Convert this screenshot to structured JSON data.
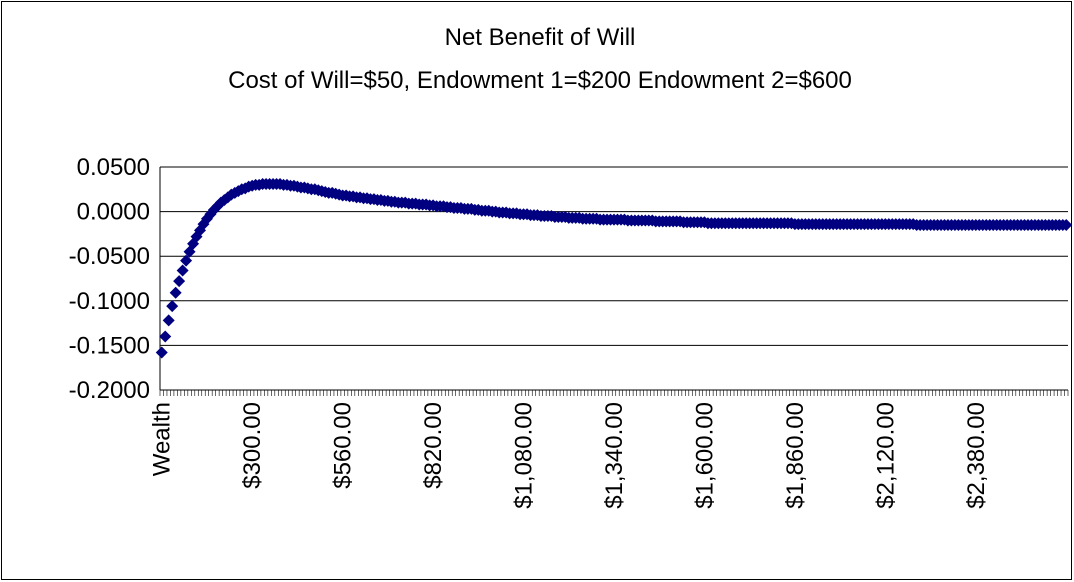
{
  "chart_data": {
    "type": "scatter-category",
    "title": "Net Benefit of Will",
    "subtitle": "Cost of Will=$50, Endowment 1=$200 Endowment 2=$600",
    "color": "#000080",
    "grid": true,
    "ylim": [
      -0.2,
      0.05
    ],
    "yticks": [
      {
        "value": 0.05,
        "label": "0.0500"
      },
      {
        "value": 0,
        "label": "0.0000"
      },
      {
        "value": -0.05,
        "label": "-0.0500"
      },
      {
        "value": -0.1,
        "label": "-0.1000"
      },
      {
        "value": -0.15,
        "label": "-0.1500"
      },
      {
        "value": -0.2,
        "label": "-0.2000"
      }
    ],
    "categories": [
      "Wealth",
      null,
      null,
      null,
      null,
      null,
      null,
      null,
      null,
      null,
      null,
      null,
      null,
      null,
      null,
      null,
      null,
      null,
      null,
      null,
      null,
      null,
      null,
      null,
      null,
      null,
      "$300.00",
      null,
      null,
      null,
      null,
      null,
      null,
      null,
      null,
      null,
      null,
      null,
      null,
      null,
      null,
      null,
      null,
      null,
      null,
      null,
      null,
      null,
      null,
      null,
      null,
      null,
      "$560.00",
      null,
      null,
      null,
      null,
      null,
      null,
      null,
      null,
      null,
      null,
      null,
      null,
      null,
      null,
      null,
      null,
      null,
      null,
      null,
      null,
      null,
      null,
      null,
      null,
      null,
      "$820.00",
      null,
      null,
      null,
      null,
      null,
      null,
      null,
      null,
      null,
      null,
      null,
      null,
      null,
      null,
      null,
      null,
      null,
      null,
      null,
      null,
      null,
      null,
      null,
      null,
      null,
      "$1,080.00",
      null,
      null,
      null,
      null,
      null,
      null,
      null,
      null,
      null,
      null,
      null,
      null,
      null,
      null,
      null,
      null,
      null,
      null,
      null,
      null,
      null,
      null,
      null,
      null,
      null,
      "$1,340.00",
      null,
      null,
      null,
      null,
      null,
      null,
      null,
      null,
      null,
      null,
      null,
      null,
      null,
      null,
      null,
      null,
      null,
      null,
      null,
      null,
      null,
      null,
      null,
      null,
      null,
      "$1,600.00",
      null,
      null,
      null,
      null,
      null,
      null,
      null,
      null,
      null,
      null,
      null,
      null,
      null,
      null,
      null,
      null,
      null,
      null,
      null,
      null,
      null,
      null,
      null,
      null,
      null,
      "$1,860.00",
      null,
      null,
      null,
      null,
      null,
      null,
      null,
      null,
      null,
      null,
      null,
      null,
      null,
      null,
      null,
      null,
      null,
      null,
      null,
      null,
      null,
      null,
      null,
      null,
      null,
      "$2,120.00",
      null,
      null,
      null,
      null,
      null,
      null,
      null,
      null,
      null,
      null,
      null,
      null,
      null,
      null,
      null,
      null,
      null,
      null,
      null,
      null,
      null,
      null,
      null,
      null,
      null,
      "$2,380.00",
      null,
      null,
      null,
      null,
      null,
      null,
      null,
      null,
      null,
      null,
      null,
      null,
      null,
      null,
      null,
      null,
      null,
      null,
      null,
      null,
      null,
      null,
      null,
      null,
      null,
      null
    ],
    "values": [
      -0.158,
      -0.14,
      -0.122,
      -0.106,
      -0.091,
      -0.078,
      -0.066,
      -0.055,
      -0.045,
      -0.036,
      -0.028,
      -0.021,
      -0.014,
      -0.008,
      -0.003,
      0.002,
      0.006,
      0.01,
      0.013,
      0.016,
      0.019,
      0.021,
      0.023,
      0.025,
      0.026,
      0.028,
      0.029,
      0.03,
      0.03,
      0.031,
      0.031,
      0.031,
      0.031,
      0.031,
      0.031,
      0.03,
      0.03,
      0.029,
      0.029,
      0.028,
      0.027,
      0.027,
      0.026,
      0.025,
      0.025,
      0.024,
      0.023,
      0.022,
      0.021,
      0.021,
      0.02,
      0.019,
      0.018,
      0.018,
      0.017,
      0.017,
      0.016,
      0.016,
      0.015,
      0.015,
      0.014,
      0.014,
      0.013,
      0.013,
      0.012,
      0.012,
      0.011,
      0.011,
      0.01,
      0.01,
      0.01,
      0.009,
      0.009,
      0.009,
      0.008,
      0.008,
      0.008,
      0.007,
      0.007,
      0.006,
      0.006,
      0.006,
      0.005,
      0.005,
      0.004,
      0.004,
      0.004,
      0.003,
      0.003,
      0.003,
      0.002,
      0.002,
      0.001,
      0.001,
      0.001,
      0,
      0,
      -0.001,
      -0.001,
      -0.001,
      -0.002,
      -0.002,
      -0.002,
      -0.003,
      -0.003,
      -0.003,
      -0.004,
      -0.004,
      -0.004,
      -0.005,
      -0.005,
      -0.005,
      -0.005,
      -0.006,
      -0.006,
      -0.006,
      -0.006,
      -0.007,
      -0.007,
      -0.007,
      -0.007,
      -0.008,
      -0.008,
      -0.008,
      -0.008,
      -0.008,
      -0.009,
      -0.009,
      -0.009,
      -0.009,
      -0.009,
      -0.009,
      -0.009,
      -0.009,
      -0.01,
      -0.01,
      -0.01,
      -0.01,
      -0.01,
      -0.01,
      -0.01,
      -0.01,
      -0.011,
      -0.011,
      -0.011,
      -0.011,
      -0.011,
      -0.011,
      -0.011,
      -0.011,
      -0.012,
      -0.012,
      -0.012,
      -0.012,
      -0.012,
      -0.012,
      -0.012,
      -0.013,
      -0.013,
      -0.013,
      -0.013,
      -0.013,
      -0.013,
      -0.013,
      -0.013,
      -0.013,
      -0.013,
      -0.013,
      -0.013,
      -0.013,
      -0.013,
      -0.013,
      -0.013,
      -0.013,
      -0.013,
      -0.013,
      -0.013,
      -0.013,
      -0.013,
      -0.013,
      -0.013,
      -0.013,
      -0.014,
      -0.014,
      -0.014,
      -0.014,
      -0.014,
      -0.014,
      -0.014,
      -0.014,
      -0.014,
      -0.014,
      -0.014,
      -0.014,
      -0.014,
      -0.014,
      -0.014,
      -0.014,
      -0.014,
      -0.014,
      -0.014,
      -0.014,
      -0.014,
      -0.014,
      -0.014,
      -0.014,
      -0.014,
      -0.014,
      -0.014,
      -0.014,
      -0.014,
      -0.014,
      -0.014,
      -0.014,
      -0.014,
      -0.014,
      -0.014,
      -0.015,
      -0.015,
      -0.015,
      -0.015,
      -0.015,
      -0.015,
      -0.015,
      -0.015,
      -0.015,
      -0.015,
      -0.015,
      -0.015,
      -0.015,
      -0.015,
      -0.015,
      -0.015,
      -0.015,
      -0.015,
      -0.015,
      -0.015,
      -0.015,
      -0.015,
      -0.015,
      -0.015,
      -0.015,
      -0.015,
      -0.015,
      -0.015,
      -0.015,
      -0.015,
      -0.015,
      -0.015,
      -0.015,
      -0.015,
      -0.015,
      -0.015,
      -0.015,
      -0.015,
      -0.015,
      -0.015,
      -0.015,
      -0.015,
      -0.015,
      -0.015
    ]
  }
}
